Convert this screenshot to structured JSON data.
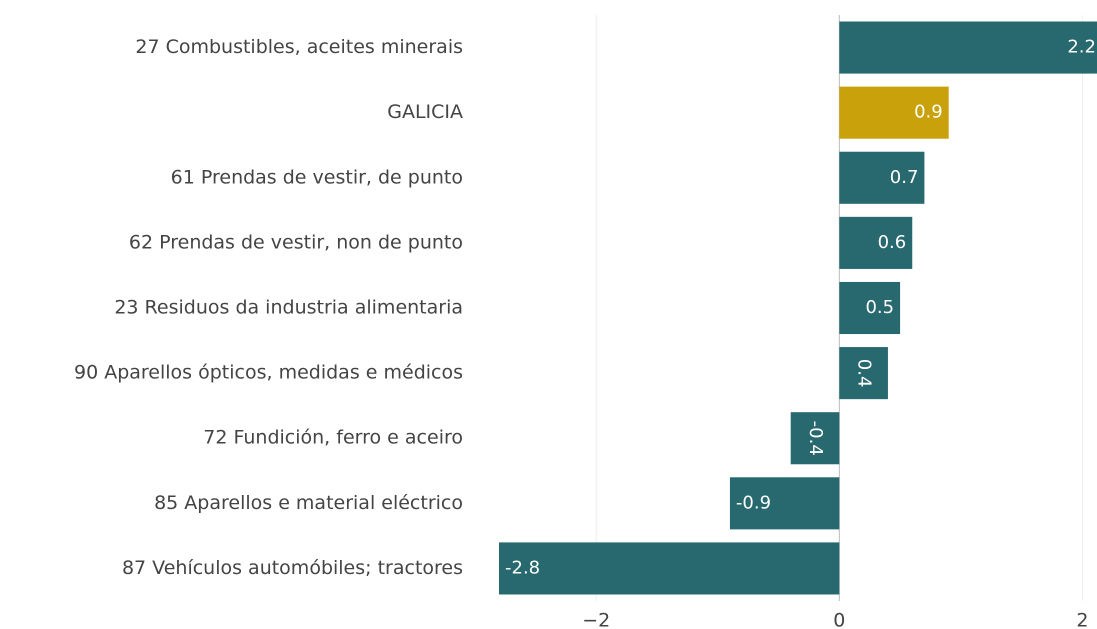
{
  "chart_data": {
    "type": "hbar",
    "categories": [
      "27 Combustibles, aceites minerais",
      "GALICIA",
      "61 Prendas de vestir, de punto",
      "62 Prendas de vestir, non de punto",
      "23 Residuos da industria alimentaria",
      "90 Aparellos ópticos, medidas e médicos",
      "72 Fundición, ferro e aceiro",
      "85 Aparellos e material eléctrico",
      "87 Vehículos automóbiles; tractores"
    ],
    "values": [
      2.2,
      0.9,
      0.7,
      0.6,
      0.5,
      0.4,
      -0.4,
      -0.9,
      -2.8
    ],
    "colors": [
      "#27696e",
      "#c9a10b",
      "#27696e",
      "#27696e",
      "#27696e",
      "#27696e",
      "#27696e",
      "#27696e",
      "#27696e"
    ],
    "xlim": [
      -2.8,
      2.12
    ],
    "xticks": [
      {
        "value": -2,
        "label": "−2"
      },
      0,
      2
    ],
    "grid": true
  }
}
